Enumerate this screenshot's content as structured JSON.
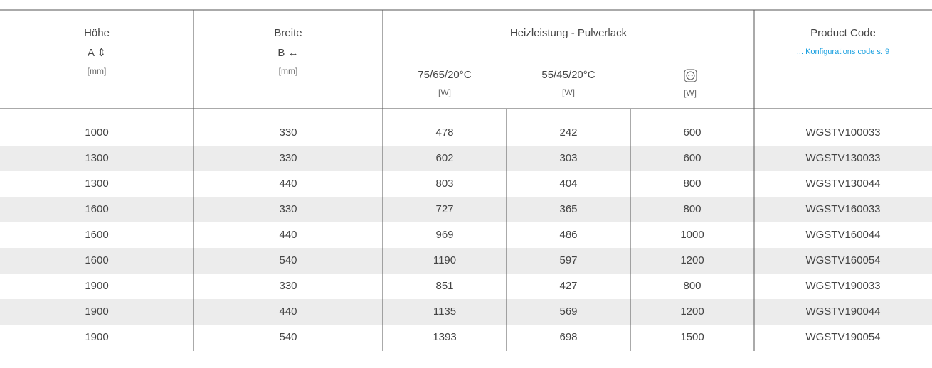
{
  "header": {
    "columns": [
      {
        "title": "Höhe",
        "symbol": "A ⇕",
        "unit": "[mm]"
      },
      {
        "title": "Breite",
        "symbol": "B ↔",
        "unit": "[mm]"
      }
    ],
    "group": {
      "title": "Heizleistung - Pulverlack",
      "columns": [
        {
          "title": "75/65/20°C",
          "unit": "[W]"
        },
        {
          "title": "55/45/20°C",
          "unit": "[W]"
        },
        {
          "unit": "[W]"
        }
      ]
    },
    "product_code": {
      "title": "Product Code",
      "note": "... Konfigurations code s. 9"
    }
  },
  "table": {
    "rows": [
      [
        1000,
        330,
        478,
        242,
        600,
        "WGSTV100033"
      ],
      [
        1300,
        330,
        602,
        303,
        600,
        "WGSTV130033"
      ],
      [
        1300,
        440,
        803,
        404,
        800,
        "WGSTV130044"
      ],
      [
        1600,
        330,
        727,
        365,
        800,
        "WGSTV160033"
      ],
      [
        1600,
        440,
        969,
        486,
        1000,
        "WGSTV160044"
      ],
      [
        1600,
        540,
        1190,
        597,
        1200,
        "WGSTV160054"
      ],
      [
        1900,
        330,
        851,
        427,
        800,
        "WGSTV190033"
      ],
      [
        1900,
        440,
        1135,
        569,
        1200,
        "WGSTV190044"
      ],
      [
        1900,
        540,
        1393,
        698,
        1500,
        "WGSTV190054"
      ]
    ]
  }
}
